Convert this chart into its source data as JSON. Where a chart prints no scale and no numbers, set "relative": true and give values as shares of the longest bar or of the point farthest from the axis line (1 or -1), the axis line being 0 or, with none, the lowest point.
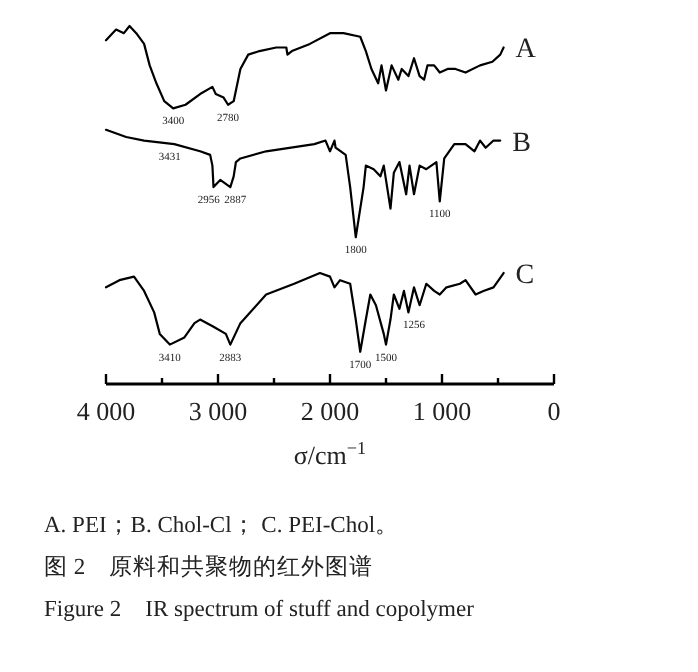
{
  "chart_data": {
    "type": "line",
    "relative": true,
    "xlabel": "σ/cm$^{−1}$",
    "xlim": [
      4000,
      0
    ],
    "xticks": [
      {
        "value": 4000,
        "label": "4 000"
      },
      {
        "value": 3500,
        "label": null
      },
      {
        "value": 3000,
        "label": "3 000"
      },
      {
        "value": 2500,
        "label": null
      },
      {
        "value": 2000,
        "label": "2 000"
      },
      {
        "value": 1500,
        "label": null
      },
      {
        "value": 1000,
        "label": "1 000"
      },
      {
        "value": 500,
        "label": null
      },
      {
        "value": 0,
        "label": "0"
      }
    ],
    "legend": false,
    "grid": false,
    "marker": "none",
    "line_style": "solid",
    "series": [
      {
        "name": "A",
        "color": "#000000",
        "x": [
          4000,
          3910,
          3840,
          3790,
          3730,
          3660,
          3610,
          3550,
          3480,
          3400,
          3290,
          3160,
          3050,
          3020,
          2950,
          2910,
          2860,
          2800,
          2730,
          2630,
          2480,
          2390,
          2380,
          2340,
          2180,
          2000,
          1880,
          1730,
          1680,
          1630,
          1570,
          1540,
          1500,
          1450,
          1390,
          1360,
          1300,
          1250,
          1200,
          1160,
          1130,
          1070,
          1020,
          950,
          880,
          790,
          660,
          550,
          480,
          450
        ],
        "values": [
          0.96,
          0.99,
          0.98,
          1.0,
          0.98,
          0.95,
          0.89,
          0.84,
          0.79,
          0.77,
          0.78,
          0.81,
          0.83,
          0.81,
          0.8,
          0.78,
          0.79,
          0.88,
          0.92,
          0.93,
          0.94,
          0.94,
          0.92,
          0.93,
          0.95,
          0.98,
          0.98,
          0.97,
          0.93,
          0.88,
          0.84,
          0.89,
          0.82,
          0.89,
          0.85,
          0.88,
          0.86,
          0.91,
          0.86,
          0.85,
          0.89,
          0.89,
          0.87,
          0.88,
          0.88,
          0.87,
          0.89,
          0.9,
          0.92,
          0.94
        ]
      },
      {
        "name": "B",
        "color": "#000000",
        "x": [
          4000,
          3820,
          3660,
          3390,
          3160,
          3070,
          3050,
          3040,
          2980,
          2890,
          2860,
          2840,
          2800,
          2570,
          2140,
          2040,
          2000,
          1960,
          1950,
          1860,
          1820,
          1770,
          1700,
          1680,
          1610,
          1550,
          1520,
          1460,
          1430,
          1380,
          1320,
          1290,
          1250,
          1200,
          1140,
          1050,
          1020,
          980,
          890,
          790,
          710,
          660,
          610,
          540,
          480
        ],
        "values": [
          0.71,
          0.69,
          0.68,
          0.67,
          0.65,
          0.64,
          0.61,
          0.55,
          0.57,
          0.55,
          0.58,
          0.62,
          0.63,
          0.65,
          0.67,
          0.68,
          0.65,
          0.68,
          0.66,
          0.64,
          0.55,
          0.41,
          0.55,
          0.61,
          0.6,
          0.58,
          0.61,
          0.49,
          0.59,
          0.62,
          0.53,
          0.61,
          0.53,
          0.61,
          0.6,
          0.62,
          0.51,
          0.63,
          0.67,
          0.67,
          0.65,
          0.68,
          0.66,
          0.68,
          0.68
        ]
      },
      {
        "name": "C",
        "color": "#000000",
        "x": [
          4000,
          3880,
          3750,
          3660,
          3570,
          3520,
          3430,
          3300,
          3210,
          3160,
          3040,
          2930,
          2890,
          2800,
          2770,
          2570,
          2320,
          2090,
          2000,
          1960,
          1910,
          1820,
          1770,
          1730,
          1680,
          1640,
          1590,
          1520,
          1500,
          1460,
          1430,
          1380,
          1340,
          1300,
          1250,
          1200,
          1140,
          1070,
          1020,
          960,
          840,
          790,
          700,
          630,
          540,
          450
        ],
        "values": [
          0.27,
          0.29,
          0.3,
          0.26,
          0.2,
          0.14,
          0.11,
          0.13,
          0.17,
          0.18,
          0.16,
          0.14,
          0.11,
          0.17,
          0.18,
          0.25,
          0.28,
          0.31,
          0.3,
          0.27,
          0.29,
          0.28,
          0.18,
          0.09,
          0.18,
          0.25,
          0.22,
          0.14,
          0.11,
          0.18,
          0.25,
          0.21,
          0.26,
          0.2,
          0.27,
          0.22,
          0.28,
          0.26,
          0.25,
          0.27,
          0.28,
          0.29,
          0.25,
          0.26,
          0.27,
          0.31
        ]
      }
    ],
    "annotations": [
      {
        "text": "3400",
        "x": 3400,
        "y": 0.77
      },
      {
        "text": "2780",
        "x": 2910,
        "y": 0.78
      },
      {
        "text": "3431",
        "x": 3430,
        "y": 0.67
      },
      {
        "text": "2956",
        "x": 3040,
        "y": 0.55
      },
      {
        "text": "2887",
        "x": 2890,
        "y": 0.55
      },
      {
        "text": "1800",
        "x": 1770,
        "y": 0.41
      },
      {
        "text": "1100",
        "x": 1020,
        "y": 0.51
      },
      {
        "text": "3410",
        "x": 3430,
        "y": 0.11
      },
      {
        "text": "2883",
        "x": 2890,
        "y": 0.11
      },
      {
        "text": "1700",
        "x": 1730,
        "y": 0.09
      },
      {
        "text": "1500",
        "x": 1500,
        "y": 0.11
      },
      {
        "text": "1256",
        "x": 1250,
        "y": 0.2
      },
      "A. PEI；B. Chol-Cl； C. PEI-Chol。",
      "图 2　原料和共聚物的红外图谱",
      "Figure 2　IR spectrum of stuff and copolymer"
    ]
  }
}
